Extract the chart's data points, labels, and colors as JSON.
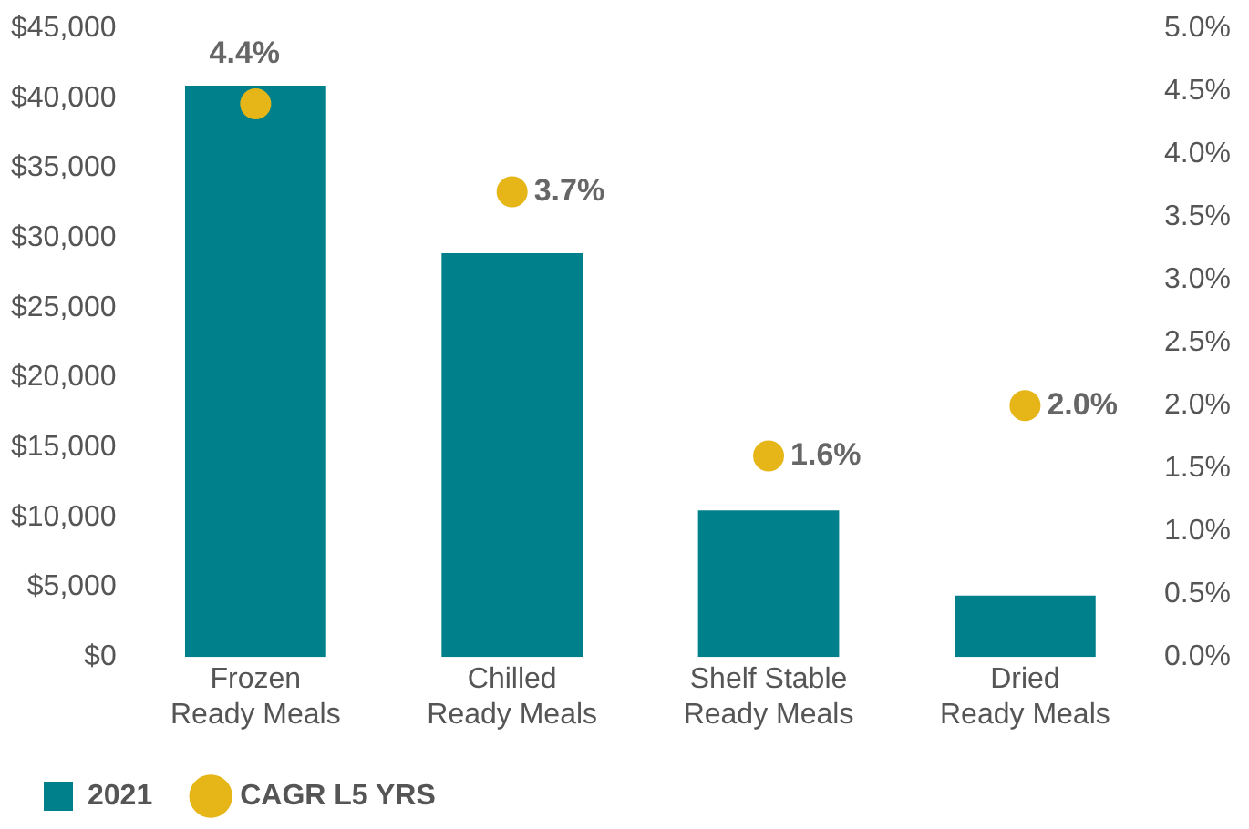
{
  "chart_data": {
    "type": "bar",
    "categories": [
      "Frozen Ready Meals",
      "Chilled Ready Meals",
      "Shelf Stable Ready Meals",
      "Dried Ready Meals"
    ],
    "series": [
      {
        "name": "2021",
        "color": "#00808a",
        "values": [
          40900,
          28900,
          10500,
          4400
        ]
      },
      {
        "name": "CAGR L5 YRS",
        "type": "scatter",
        "axis": "y2",
        "color": "#e6b517",
        "x": [
          "Frozen Ready Meals",
          "Chilled Ready Meals",
          "Shelf Stable Ready Meals",
          "Dried Ready Meals"
        ],
        "values": [
          4.4,
          3.7,
          1.6,
          2.0
        ],
        "value_labels": [
          "4.4%",
          "3.7%",
          "1.6%",
          "2.0%"
        ]
      }
    ],
    "ylim": [
      0,
      45000
    ],
    "yticks": [
      {
        "value": 0,
        "label": "$0"
      },
      {
        "value": 5000,
        "label": "$5,000"
      },
      {
        "value": 10000,
        "label": "$10,000"
      },
      {
        "value": 15000,
        "label": "$15,000"
      },
      {
        "value": 20000,
        "label": "$20,000"
      },
      {
        "value": 25000,
        "label": "$25,000"
      },
      {
        "value": 30000,
        "label": "$30,000"
      },
      {
        "value": 35000,
        "label": "$35,000"
      },
      {
        "value": 40000,
        "label": "$40,000"
      },
      {
        "value": 45000,
        "label": "$45,000"
      }
    ],
    "y2lim": [
      0,
      5
    ],
    "y2ticks": [
      {
        "value": 0,
        "label": "0.0%"
      },
      {
        "value": 0.5,
        "label": "0.5%"
      },
      {
        "value": 1,
        "label": "1.0%"
      },
      {
        "value": 1.5,
        "label": "1.5%"
      },
      {
        "value": 2,
        "label": "2.0%"
      },
      {
        "value": 2.5,
        "label": "2.5%"
      },
      {
        "value": 3,
        "label": "3.0%"
      },
      {
        "value": 3.5,
        "label": "3.5%"
      },
      {
        "value": 4,
        "label": "4.0%"
      },
      {
        "value": 4.5,
        "label": "4.5%"
      },
      {
        "value": 5,
        "label": "5.0%"
      }
    ],
    "grid": false,
    "legend": "bottom left",
    "marker": "circle"
  }
}
